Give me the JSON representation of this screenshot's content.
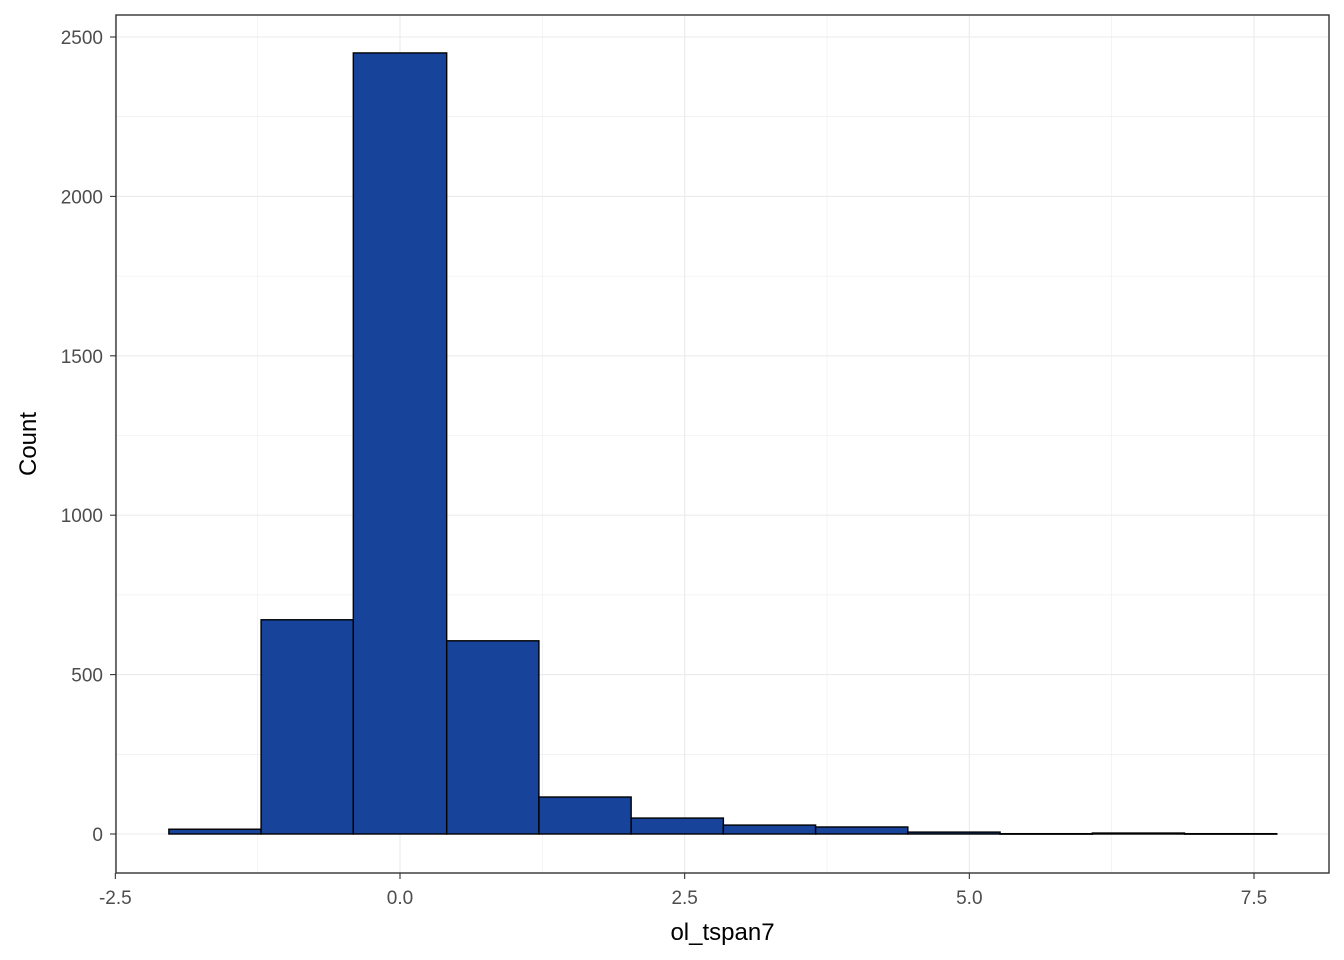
{
  "chart_data": {
    "type": "bar",
    "subtype": "histogram",
    "xlabel": "ol_tspan7",
    "ylabel": "Count",
    "xlim": [
      -2.5,
      8.2
    ],
    "ylim": [
      -60,
      2560
    ],
    "x_ticks": [
      {
        "value": -2.5,
        "label": "-2.5"
      },
      {
        "value": 0.0,
        "label": "0.0"
      },
      {
        "value": 2.5,
        "label": "2.5"
      },
      {
        "value": 5.0,
        "label": "5.0"
      },
      {
        "value": 7.5,
        "label": "7.5"
      }
    ],
    "y_ticks": [
      {
        "value": 0,
        "label": "0"
      },
      {
        "value": 500,
        "label": "500"
      },
      {
        "value": 1000,
        "label": "1000"
      },
      {
        "value": 1500,
        "label": "1500"
      },
      {
        "value": 2000,
        "label": "2000"
      },
      {
        "value": 2500,
        "label": "2500"
      }
    ],
    "bins": [
      {
        "x0": -2.03,
        "x1": -1.22,
        "count": 15
      },
      {
        "x0": -1.22,
        "x1": -0.41,
        "count": 672
      },
      {
        "x0": -0.41,
        "x1": 0.41,
        "count": 2450
      },
      {
        "x0": 0.41,
        "x1": 1.22,
        "count": 606
      },
      {
        "x0": 1.22,
        "x1": 2.03,
        "count": 116
      },
      {
        "x0": 2.03,
        "x1": 2.84,
        "count": 50
      },
      {
        "x0": 2.84,
        "x1": 3.65,
        "count": 28
      },
      {
        "x0": 3.65,
        "x1": 4.46,
        "count": 22
      },
      {
        "x0": 4.46,
        "x1": 5.27,
        "count": 6
      },
      {
        "x0": 5.27,
        "x1": 6.08,
        "count": 1
      },
      {
        "x0": 6.08,
        "x1": 6.89,
        "count": 3
      },
      {
        "x0": 6.89,
        "x1": 7.7,
        "count": 1
      }
    ],
    "grid": true,
    "legend": "none",
    "colors": {
      "bar_fill": "#17439A",
      "bar_stroke": "#000000",
      "grid_major": "#EBEBEB",
      "panel_border": "#333333"
    }
  }
}
